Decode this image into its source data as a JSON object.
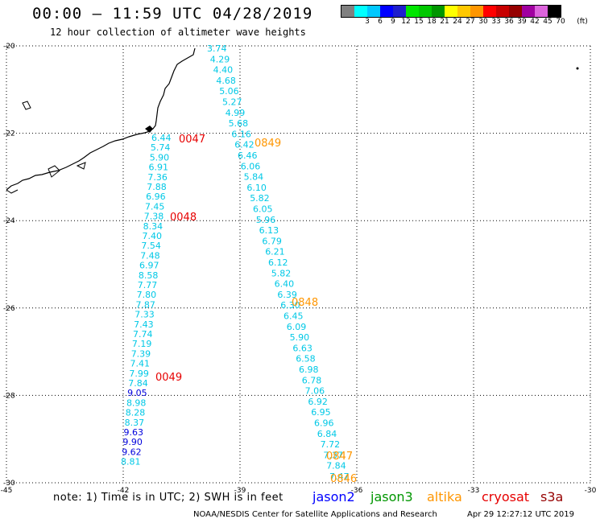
{
  "header": {
    "title": "00:00 — 11:59 UTC 04/28/2019",
    "subtitle": "12 hour collection of altimeter wave heights"
  },
  "legend": {
    "unit": "(ft)",
    "bins": [
      {
        "label": "",
        "color": "#808080"
      },
      {
        "label": "3",
        "color": "#00ffff"
      },
      {
        "label": "6",
        "color": "#00c8ff"
      },
      {
        "label": "9",
        "color": "#0000ff"
      },
      {
        "label": "12",
        "color": "#1e1ecd"
      },
      {
        "label": "15",
        "color": "#00e600"
      },
      {
        "label": "18",
        "color": "#00c800"
      },
      {
        "label": "21",
        "color": "#009600"
      },
      {
        "label": "24",
        "color": "#ffff00"
      },
      {
        "label": "27",
        "color": "#ffc800"
      },
      {
        "label": "30",
        "color": "#ff9600"
      },
      {
        "label": "33",
        "color": "#ff0000"
      },
      {
        "label": "36",
        "color": "#c80000"
      },
      {
        "label": "39",
        "color": "#960000"
      },
      {
        "label": "42",
        "color": "#a000a0"
      },
      {
        "label": "45",
        "color": "#dc64dc"
      },
      {
        "label": "70",
        "color": "#000000"
      }
    ]
  },
  "axes": {
    "lat_labels": [
      "-20",
      "-22",
      "-24",
      "-26",
      "-28",
      "-30"
    ],
    "lon_labels": [
      "-45",
      "-42",
      "-39",
      "-36",
      "-33",
      "-30"
    ]
  },
  "tracks": [
    {
      "name": "track-west",
      "points": [
        {
          "v": "6.44"
        },
        {
          "v": "5.74"
        },
        {
          "v": "5.90"
        },
        {
          "v": "6.91"
        },
        {
          "v": "7.36"
        },
        {
          "v": "7.88"
        },
        {
          "v": "6.96"
        },
        {
          "v": "7.45"
        },
        {
          "v": "7.38"
        },
        {
          "v": "8.34"
        },
        {
          "v": "7.40"
        },
        {
          "v": "7.54"
        },
        {
          "v": "7.48"
        },
        {
          "v": "6.97"
        },
        {
          "v": "8.58"
        },
        {
          "v": "7.77"
        },
        {
          "v": "7.80"
        },
        {
          "v": "7.87"
        },
        {
          "v": "7.33"
        },
        {
          "v": "7.43"
        },
        {
          "v": "7.74"
        },
        {
          "v": "7.19"
        },
        {
          "v": "7.39"
        },
        {
          "v": "7.41"
        },
        {
          "v": "7.99"
        },
        {
          "v": "7.84"
        },
        {
          "v": "9.05"
        },
        {
          "v": "8.98"
        },
        {
          "v": "8.28"
        },
        {
          "v": "8.37"
        },
        {
          "v": "9.63"
        },
        {
          "v": "9.90"
        },
        {
          "v": "9.62"
        },
        {
          "v": "8.81"
        }
      ]
    },
    {
      "name": "track-east",
      "points": [
        {
          "v": "3.74"
        },
        {
          "v": "4.29"
        },
        {
          "v": "4.40"
        },
        {
          "v": "4.68"
        },
        {
          "v": "5.06"
        },
        {
          "v": "5.27"
        },
        {
          "v": "4.99"
        },
        {
          "v": "5.68"
        },
        {
          "v": "6.16"
        },
        {
          "v": "6.42"
        },
        {
          "v": "6.46"
        },
        {
          "v": "6.06"
        },
        {
          "v": "5.84"
        },
        {
          "v": "6.10"
        },
        {
          "v": "5.82"
        },
        {
          "v": "6.05"
        },
        {
          "v": "5.96"
        },
        {
          "v": "6.13"
        },
        {
          "v": "6.79"
        },
        {
          "v": "6.21"
        },
        {
          "v": "6.12"
        },
        {
          "v": "5.82"
        },
        {
          "v": "6.40"
        },
        {
          "v": "6.39"
        },
        {
          "v": "6.30"
        },
        {
          "v": "6.45"
        },
        {
          "v": "6.09"
        },
        {
          "v": "5.90"
        },
        {
          "v": "6.63"
        },
        {
          "v": "6.58"
        },
        {
          "v": "6.98"
        },
        {
          "v": "6.78"
        },
        {
          "v": "7.06"
        },
        {
          "v": "6.92"
        },
        {
          "v": "6.95"
        },
        {
          "v": "6.96"
        },
        {
          "v": "6.84"
        },
        {
          "v": "7.72"
        },
        {
          "v": "7.37"
        },
        {
          "v": "7.84"
        },
        {
          "v": "7.47"
        }
      ]
    }
  ],
  "time_labels": [
    {
      "text": "0047",
      "color": "#e60000"
    },
    {
      "text": "0048",
      "color": "#e60000"
    },
    {
      "text": "0049",
      "color": "#e60000"
    },
    {
      "text": "0849",
      "color": "#ff9600"
    },
    {
      "text": "0848",
      "color": "#ff9600"
    },
    {
      "text": "0847",
      "color": "#ff9600"
    },
    {
      "text": "0846",
      "color": "#ff9600"
    }
  ],
  "footer": {
    "note": "note: 1) Time is in UTC; 2) SWH is in feet",
    "satellites": [
      {
        "name": "jason2",
        "color": "#0000ff"
      },
      {
        "name": "jason3",
        "color": "#009600"
      },
      {
        "name": "altika",
        "color": "#ff9600"
      },
      {
        "name": "cryosat",
        "color": "#e60000"
      },
      {
        "name": "s3a",
        "color": "#960000"
      }
    ],
    "credit": "NOAA/NESDIS Center for Satellite Applications and Research",
    "date": "Apr 29 12:27:12 UTC 2019"
  }
}
